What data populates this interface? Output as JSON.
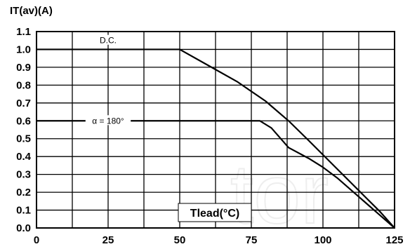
{
  "chart_data": {
    "type": "line",
    "title": "",
    "ylabel": "IT(av)(A)",
    "xlabel": "Tlead(°C)",
    "xlim": [
      0,
      125
    ],
    "ylim": [
      0,
      1.1
    ],
    "x_ticks": [
      0,
      25,
      50,
      75,
      100,
      125
    ],
    "y_ticks": [
      0.0,
      0.1,
      0.2,
      0.3,
      0.4,
      0.5,
      0.6,
      0.7,
      0.8,
      0.9,
      1.0,
      1.1
    ],
    "x_minor_gridlines": [
      12.5,
      37.5,
      62.5,
      87.5,
      112.5
    ],
    "grid": true,
    "series": [
      {
        "name": "D.C.",
        "x": [
          0,
          50,
          60,
          70,
          80,
          88,
          95,
          100,
          105,
          110,
          115,
          120,
          125
        ],
        "y": [
          1.0,
          1.0,
          0.91,
          0.82,
          0.71,
          0.6,
          0.49,
          0.41,
          0.33,
          0.25,
          0.17,
          0.09,
          0.0
        ]
      },
      {
        "name": "α = 180°",
        "x": [
          0,
          50,
          78,
          82,
          88,
          95,
          100,
          105,
          110,
          115,
          120,
          125
        ],
        "y": [
          0.6,
          0.6,
          0.6,
          0.56,
          0.45,
          0.39,
          0.34,
          0.28,
          0.21,
          0.14,
          0.07,
          0.0
        ]
      }
    ],
    "annotations": [
      {
        "text": "D.C.",
        "x": 25,
        "y": 1.05
      },
      {
        "text": "α = 180°",
        "x": 25,
        "y": 0.6
      }
    ],
    "watermark": "tor"
  }
}
